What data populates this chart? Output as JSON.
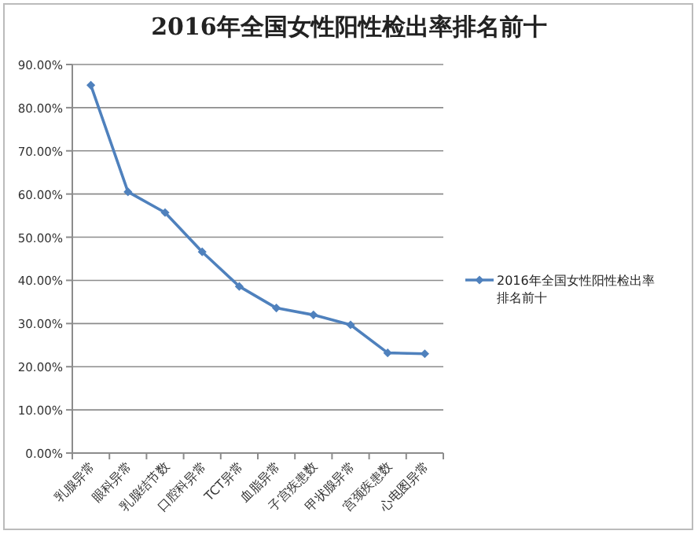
{
  "chart_data": {
    "type": "line",
    "title": "2016年全国女性阳性检出率排名前十",
    "categories": [
      "乳腺异常",
      "眼科异常",
      "乳腺结节数",
      "口腔科异常",
      "TCT异常",
      "血脂异常",
      "子宫疾患数",
      "甲状腺异常",
      "宫颈疾患数",
      "心电图异常"
    ],
    "series": [
      {
        "name": "2016年全国女性阳性检出率排名前十",
        "color": "#4f81bd",
        "values": [
          85.2,
          60.5,
          55.7,
          46.6,
          38.6,
          33.6,
          32.0,
          29.7,
          23.2,
          23.0
        ]
      }
    ],
    "ylim": [
      0,
      90
    ],
    "yticks": [
      {
        "value": 0,
        "label": "0.00%"
      },
      {
        "value": 10,
        "label": "10.00%"
      },
      {
        "value": 20,
        "label": "20.00%"
      },
      {
        "value": 30,
        "label": "30.00%"
      },
      {
        "value": 40,
        "label": "40.00%"
      },
      {
        "value": 50,
        "label": "50.00%"
      },
      {
        "value": 60,
        "label": "60.00%"
      },
      {
        "value": 70,
        "label": "70.00%"
      },
      {
        "value": 80,
        "label": "80.00%"
      },
      {
        "value": 90,
        "label": "90.00%"
      }
    ],
    "grid": "y",
    "legend": "right",
    "marker": "diamond",
    "line_style": "solid"
  }
}
